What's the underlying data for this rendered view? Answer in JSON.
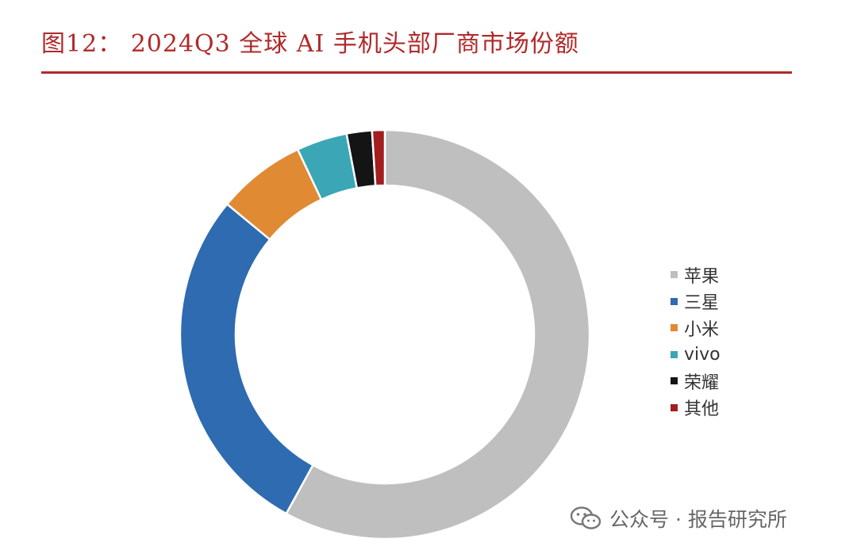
{
  "title": "图12：  2024Q3 全球 AI 手机头部厂商市场份额",
  "watermark": {
    "text": "公众号 · 报告研究所",
    "icon": "wechat-icon"
  },
  "chart_data": {
    "type": "pie",
    "variant": "donut",
    "title": "图12：  2024Q3 全球 AI 手机头部厂商市场份额",
    "categories": [
      "苹果",
      "三星",
      "小米",
      "vivo",
      "荣耀",
      "其他"
    ],
    "values": [
      58,
      28,
      7,
      4,
      2,
      1
    ],
    "colors": [
      "#bfbfbf",
      "#2e6bb0",
      "#e08a34",
      "#3aa6b6",
      "#141414",
      "#a31f1f"
    ],
    "legend": "right",
    "start": "top",
    "direction": "clockwise"
  }
}
